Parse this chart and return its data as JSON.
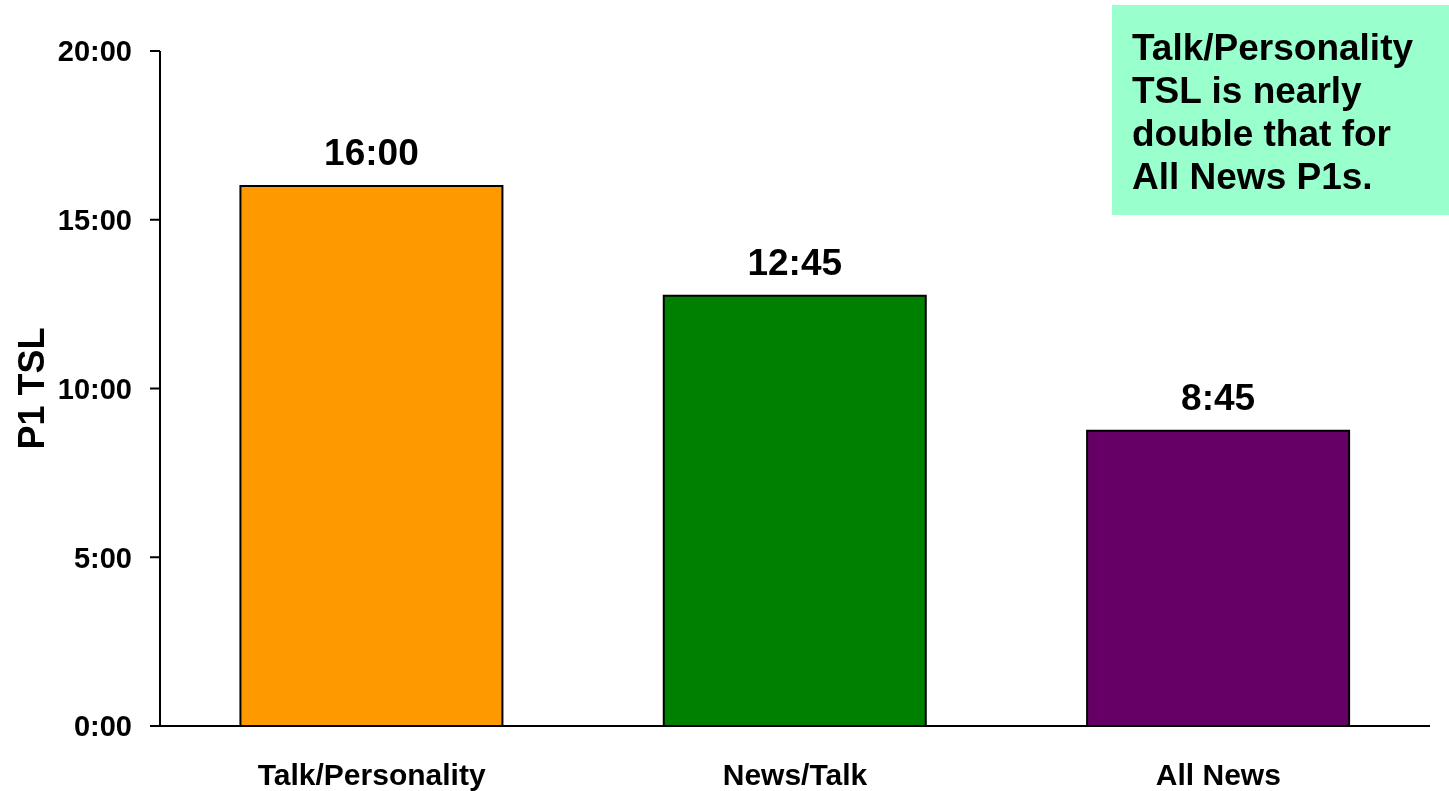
{
  "chart_data": {
    "type": "bar",
    "ylabel": "P1 TSL",
    "categories": [
      "Talk/Personality",
      "News/Talk",
      "All News"
    ],
    "values": [
      16,
      12.75,
      8.75
    ],
    "colors": [
      "#ff9900",
      "#008000",
      "#660066"
    ],
    "value_labels": [
      "16:00",
      "12:45",
      "8:45"
    ],
    "ylim": [
      0,
      20
    ],
    "yticks": [
      {
        "value": 0,
        "label": "0:00"
      },
      {
        "value": 5,
        "label": "5:00"
      },
      {
        "value": 10,
        "label": "10:00"
      },
      {
        "value": 15,
        "label": "15:00"
      },
      {
        "value": 20,
        "label": "20:00"
      }
    ],
    "annotations": [
      "Talk/Personality TSL is nearly double that for All News P1s."
    ]
  }
}
